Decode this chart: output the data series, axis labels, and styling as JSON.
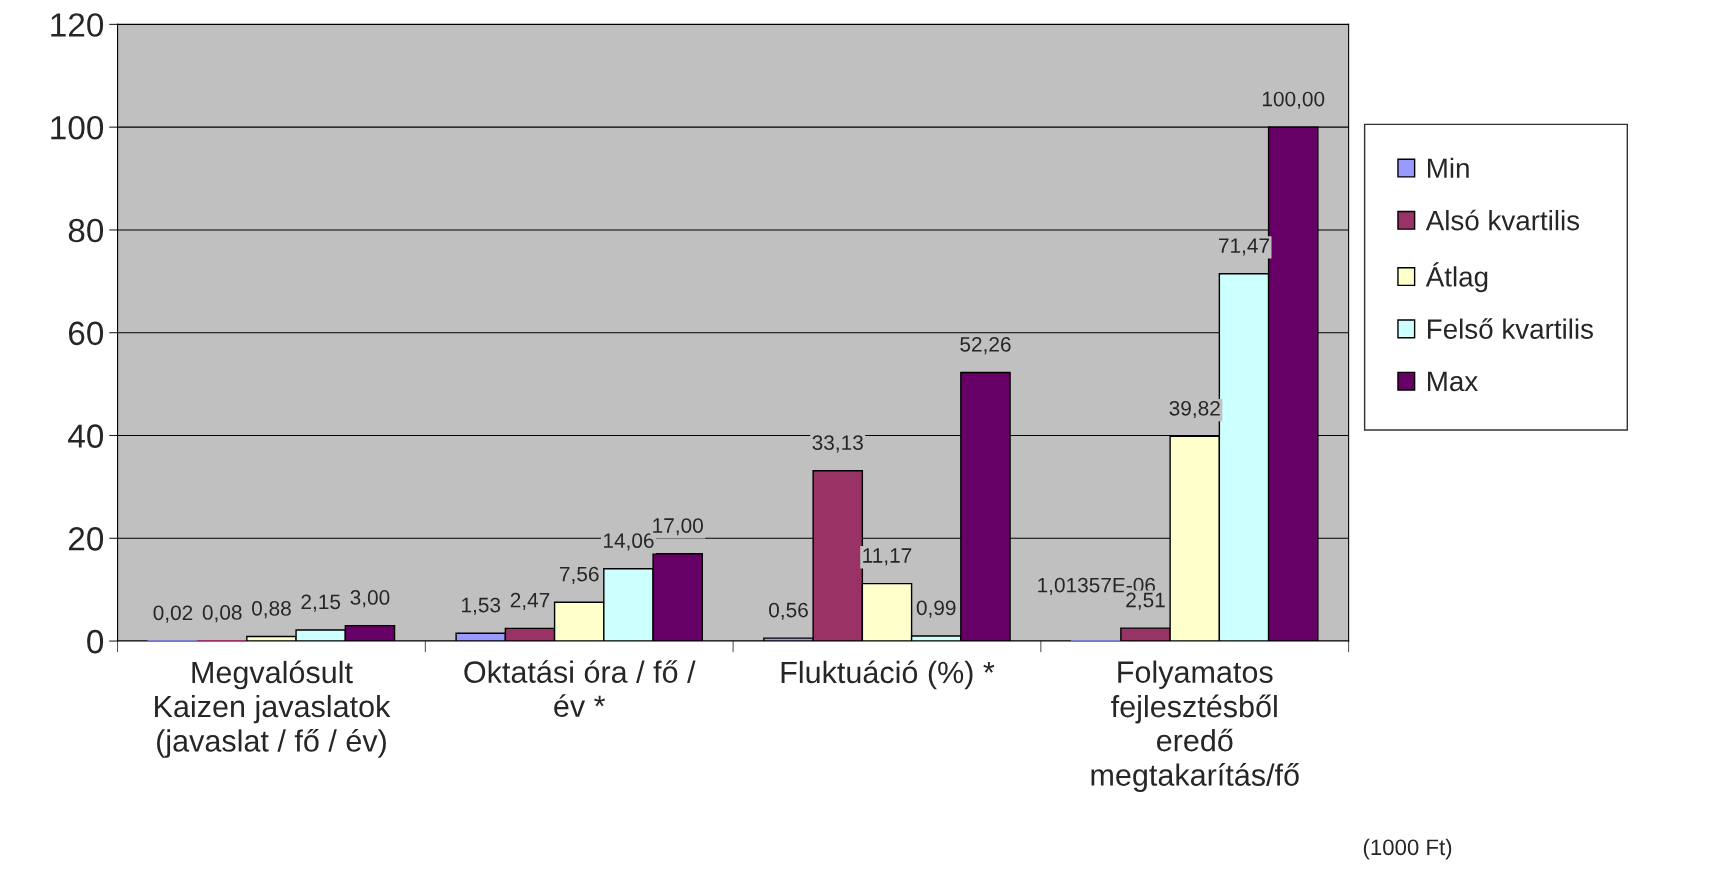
{
  "chart_data": {
    "type": "bar",
    "categories": [
      "Megvalósult\nKaizen javaslatok\n(javaslat / fő / év)",
      "Oktatási óra / fő /\név *",
      "Fluktuáció (%) *",
      "Folyamatos\nfejlesztésből\neredő\nmegtakarítás/fő"
    ],
    "series": [
      {
        "name": "Min",
        "color": "#9999ff",
        "values": [
          0.02,
          1.53,
          0.56,
          1.01357e-06
        ],
        "value_labels": [
          "0,02",
          "1,53",
          "0,56",
          "1,01357E-06"
        ]
      },
      {
        "name": "Alsó kvartilis",
        "color": "#993366",
        "values": [
          0.08,
          2.47,
          33.13,
          2.51
        ],
        "value_labels": [
          "0,08",
          "2,47",
          "33,13",
          "2,51"
        ]
      },
      {
        "name": "Átlag",
        "color": "#ffffcc",
        "values": [
          0.88,
          7.56,
          11.17,
          39.82
        ],
        "value_labels": [
          "0,88",
          "7,56",
          "11,17",
          "39,82"
        ]
      },
      {
        "name": "Felső kvartilis",
        "color": "#ccffff",
        "values": [
          2.15,
          14.06,
          0.99,
          71.47
        ],
        "value_labels": [
          "2,15",
          "14,06",
          "0,99",
          "71,47"
        ]
      },
      {
        "name": "Max",
        "color": "#660066",
        "values": [
          3.0,
          17.0,
          52.26,
          100.0
        ],
        "value_labels": [
          "3,00",
          "17,00",
          "52,26",
          "100,00"
        ]
      }
    ],
    "ylim": [
      0,
      120
    ],
    "yticks": [
      0,
      20,
      40,
      60,
      80,
      100,
      120
    ],
    "grid": "y",
    "legend": "right",
    "annotations": [
      "(1000 Ft)"
    ]
  }
}
